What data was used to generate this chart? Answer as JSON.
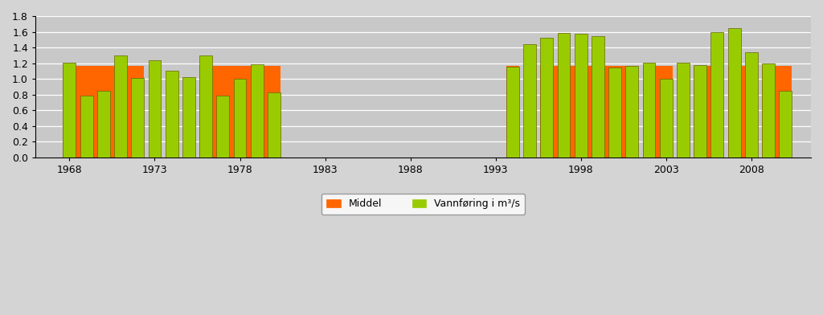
{
  "years": [
    1968,
    1969,
    1970,
    1971,
    1972,
    1973,
    1974,
    1975,
    1976,
    1977,
    1978,
    1979,
    1980,
    1994,
    1995,
    1996,
    1997,
    1998,
    1999,
    2000,
    2001,
    2002,
    2003,
    2004,
    2005,
    2006,
    2007,
    2008,
    2009,
    2010
  ],
  "vannforing": [
    1.21,
    0.79,
    0.85,
    1.3,
    1.01,
    1.24,
    1.1,
    1.02,
    1.3,
    0.79,
    1.0,
    1.18,
    0.83,
    1.15,
    1.44,
    1.52,
    1.58,
    1.57,
    1.54,
    1.14,
    1.16,
    1.21,
    1.0,
    1.21,
    1.17,
    1.59,
    1.65,
    1.34,
    1.2,
    0.85
  ],
  "orange_groups": [
    [
      1968,
      1972
    ],
    [
      1976,
      1980
    ],
    [
      1994,
      1994
    ],
    [
      1996,
      2001
    ],
    [
      2002,
      2003
    ],
    [
      2005,
      2006
    ],
    [
      2007,
      2008
    ],
    [
      2009,
      2010
    ]
  ],
  "middel": 1.16,
  "bar_color_green": "#99cc00",
  "bar_color_orange": "#ff6600",
  "bar_edge_color": "#666600",
  "plot_bg_color": "#c8c8c8",
  "fig_bg_color": "#d4d4d4",
  "ylim": [
    0,
    1.8
  ],
  "yticks": [
    0,
    0.2,
    0.4,
    0.6,
    0.8,
    1.0,
    1.2,
    1.4,
    1.6,
    1.8
  ],
  "xticks": [
    1968,
    1973,
    1978,
    1983,
    1988,
    1993,
    1998,
    2003,
    2008
  ],
  "legend_middel": "Middel",
  "legend_vannforing": "Vannføring i m³/s",
  "bar_width": 0.75,
  "xlim_left": 1966.0,
  "xlim_right": 2011.5
}
